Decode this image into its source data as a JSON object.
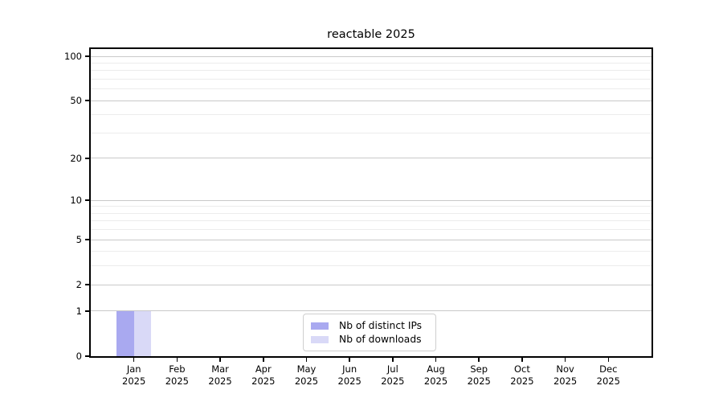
{
  "figure": {
    "title": "reactable 2025",
    "background": "#ffffff"
  },
  "legend": {
    "items": [
      {
        "label": "Nb of distinct IPs",
        "color": "#a9a9f0"
      },
      {
        "label": "Nb of downloads",
        "color": "#d9d9f7"
      }
    ]
  },
  "chart_data": {
    "type": "bar",
    "title": "reactable 2025",
    "x_months": [
      "Jan",
      "Feb",
      "Mar",
      "Apr",
      "May",
      "Jun",
      "Jul",
      "Aug",
      "Sep",
      "Oct",
      "Nov",
      "Dec"
    ],
    "x_year": "2025",
    "categories": [
      "Jan 2025",
      "Feb 2025",
      "Mar 2025",
      "Apr 2025",
      "May 2025",
      "Jun 2025",
      "Jul 2025",
      "Aug 2025",
      "Sep 2025",
      "Oct 2025",
      "Nov 2025",
      "Dec 2025"
    ],
    "series": [
      {
        "name": "Nb of distinct IPs",
        "color": "#a9a9f0",
        "values": [
          1,
          0,
          0,
          0,
          0,
          0,
          0,
          0,
          0,
          0,
          0,
          0
        ]
      },
      {
        "name": "Nb of downloads",
        "color": "#d9d9f7",
        "values": [
          1,
          0,
          0,
          0,
          0,
          0,
          0,
          0,
          0,
          0,
          0,
          0
        ]
      }
    ],
    "y_scale": "log1p",
    "y_tick_values": [
      0,
      1,
      2,
      5,
      10,
      20,
      50,
      100
    ],
    "y_tick_labels": [
      "0",
      "1",
      "2",
      "5",
      "10",
      "20",
      "50",
      "100"
    ],
    "y_minor_gridlines": [
      3,
      4,
      6,
      7,
      8,
      9,
      30,
      40,
      60,
      70,
      80,
      90
    ],
    "ylim": [
      0,
      112
    ],
    "grid": "horizontal",
    "legend_position": "lower center",
    "colors": {
      "grid_major": "#c9c9c9",
      "grid_minor": "#ececec",
      "axis": "#000000",
      "text": "#000000"
    }
  }
}
